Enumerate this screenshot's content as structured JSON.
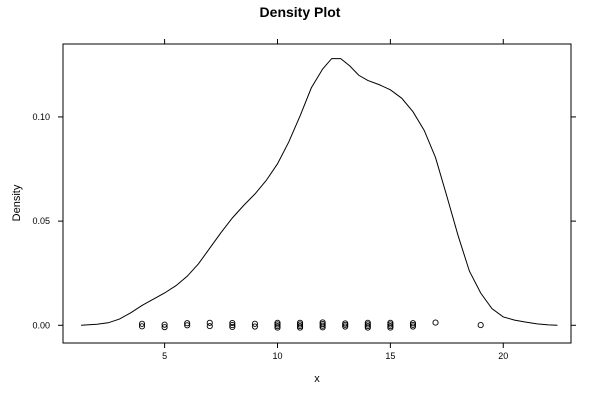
{
  "chart_data": {
    "type": "line",
    "title": "Density Plot",
    "xlabel": "x",
    "ylabel": "Density",
    "xlim": [
      0.5,
      23.0
    ],
    "ylim": [
      -0.0085,
      0.135
    ],
    "x_ticks": [
      5,
      10,
      15,
      20
    ],
    "x_tick_labels": [
      "5",
      "10",
      "15",
      "20"
    ],
    "y_ticks": [
      0.0,
      0.05,
      0.1
    ],
    "y_tick_labels": [
      "0.00",
      "0.05",
      "0.10"
    ],
    "grid": false,
    "series": [
      {
        "kind": "density-curve",
        "points": [
          [
            1.3,
            0.0
          ],
          [
            2.0,
            0.0005
          ],
          [
            2.5,
            0.0012
          ],
          [
            3.0,
            0.003
          ],
          [
            3.5,
            0.006
          ],
          [
            4.0,
            0.0095
          ],
          [
            4.5,
            0.0125
          ],
          [
            5.0,
            0.0155
          ],
          [
            5.5,
            0.019
          ],
          [
            6.0,
            0.0235
          ],
          [
            6.5,
            0.0295
          ],
          [
            7.0,
            0.037
          ],
          [
            7.5,
            0.0445
          ],
          [
            8.0,
            0.0515
          ],
          [
            8.5,
            0.0575
          ],
          [
            9.0,
            0.063
          ],
          [
            9.5,
            0.0695
          ],
          [
            10.0,
            0.0775
          ],
          [
            10.5,
            0.088
          ],
          [
            11.0,
            0.1005
          ],
          [
            11.5,
            0.114
          ],
          [
            12.0,
            0.123
          ],
          [
            12.4,
            0.128
          ],
          [
            12.8,
            0.128
          ],
          [
            13.2,
            0.1245
          ],
          [
            13.6,
            0.12
          ],
          [
            14.0,
            0.1175
          ],
          [
            14.5,
            0.1155
          ],
          [
            15.0,
            0.113
          ],
          [
            15.5,
            0.109
          ],
          [
            16.0,
            0.1025
          ],
          [
            16.5,
            0.0935
          ],
          [
            17.0,
            0.0805
          ],
          [
            17.5,
            0.062
          ],
          [
            18.0,
            0.043
          ],
          [
            18.5,
            0.026
          ],
          [
            19.0,
            0.0155
          ],
          [
            19.5,
            0.008
          ],
          [
            20.0,
            0.004
          ],
          [
            20.5,
            0.0025
          ],
          [
            21.0,
            0.0015
          ],
          [
            21.5,
            0.0007
          ],
          [
            22.0,
            0.0002
          ],
          [
            22.4,
            0.0
          ]
        ]
      },
      {
        "kind": "rug-points",
        "points": [
          [
            4.0,
            0.0007
          ],
          [
            4.0,
            -0.0005
          ],
          [
            5.0,
            0.0003
          ],
          [
            5.0,
            -0.0009
          ],
          [
            6.0,
            0.001
          ],
          [
            6.0,
            0.0
          ],
          [
            7.0,
            0.0012
          ],
          [
            7.0,
            -0.0004
          ],
          [
            8.0,
            0.0011
          ],
          [
            8.0,
            0.0001
          ],
          [
            8.0,
            -0.0008
          ],
          [
            9.0,
            0.0007
          ],
          [
            9.0,
            -0.0006
          ],
          [
            10.0,
            0.0012
          ],
          [
            10.0,
            0.0004
          ],
          [
            10.0,
            -0.0004
          ],
          [
            10.0,
            -0.0011
          ],
          [
            11.0,
            0.0012
          ],
          [
            11.0,
            0.0004
          ],
          [
            11.0,
            -0.0004
          ],
          [
            11.0,
            -0.0011
          ],
          [
            12.0,
            0.0014
          ],
          [
            12.0,
            0.0006
          ],
          [
            12.0,
            -0.0002
          ],
          [
            12.0,
            -0.001
          ],
          [
            13.0,
            0.0009
          ],
          [
            13.0,
            0.0002
          ],
          [
            13.0,
            -0.0006
          ],
          [
            14.0,
            0.0012
          ],
          [
            14.0,
            0.0004
          ],
          [
            14.0,
            -0.0004
          ],
          [
            14.0,
            -0.0011
          ],
          [
            15.0,
            0.0012
          ],
          [
            15.0,
            0.0004
          ],
          [
            15.0,
            -0.0004
          ],
          [
            15.0,
            -0.0011
          ],
          [
            16.0,
            0.001
          ],
          [
            16.0,
            0.0002
          ],
          [
            16.0,
            -0.0006
          ],
          [
            17.0,
            0.0013
          ],
          [
            19.0,
            0.0001
          ]
        ]
      }
    ]
  }
}
